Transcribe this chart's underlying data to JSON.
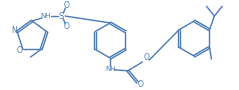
{
  "bg_color": "#ffffff",
  "line_color": "#4a7ab5",
  "line_width": 1.0,
  "figsize": [
    2.39,
    0.9
  ],
  "dpi": 100,
  "xlim": [
    0,
    239
  ],
  "ylim": [
    0,
    90
  ]
}
